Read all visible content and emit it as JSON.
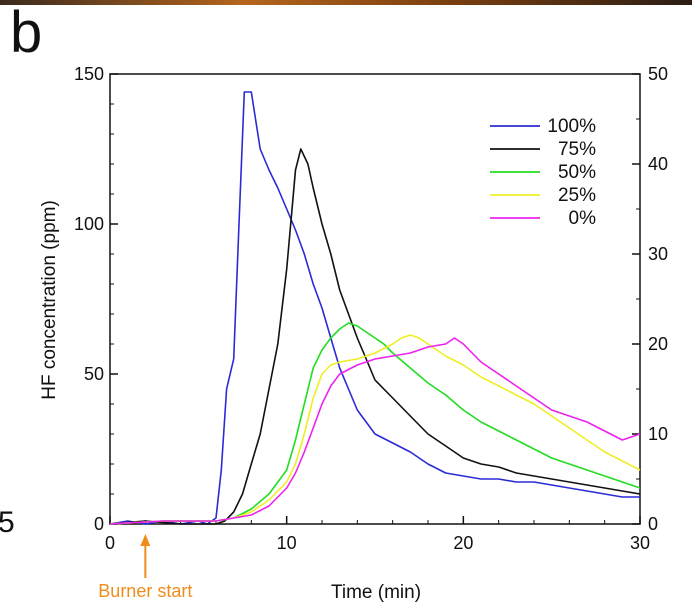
{
  "panel_label": "b",
  "edge_fragment": "5",
  "colors": {
    "s100": "#2b2bd6",
    "s75": "#111111",
    "s50": "#22dd22",
    "s25": "#eeee22",
    "s0": "#ee22ee",
    "annotation": "#f08c1a"
  },
  "chart_data": {
    "type": "line",
    "title": "",
    "xlabel": "Time (min)",
    "ylabel": "HF concentration (ppm)",
    "xlim": [
      0,
      30
    ],
    "ylim": [
      0,
      150
    ],
    "y2lim": [
      0,
      50
    ],
    "xticks": [
      "0",
      "10",
      "20",
      "30"
    ],
    "yticks": [
      "0",
      "50",
      "100",
      "150"
    ],
    "y2ticks": [
      "0",
      "10",
      "20",
      "30",
      "40",
      "50"
    ],
    "legend_position": "top-right",
    "grid": false,
    "annotation": {
      "text": "Burner start",
      "x": 2
    },
    "series": [
      {
        "name": "100%",
        "color_key": "s100",
        "points": [
          [
            0,
            0
          ],
          [
            1,
            1
          ],
          [
            2,
            0
          ],
          [
            3,
            1
          ],
          [
            4,
            0
          ],
          [
            5,
            1
          ],
          [
            5.5,
            0
          ],
          [
            6,
            2
          ],
          [
            6.3,
            18
          ],
          [
            6.6,
            45
          ],
          [
            7,
            55
          ],
          [
            7.3,
            100
          ],
          [
            7.6,
            144
          ],
          [
            8,
            144
          ],
          [
            8.5,
            125
          ],
          [
            9,
            118
          ],
          [
            9.5,
            112
          ],
          [
            10,
            105
          ],
          [
            10.5,
            98
          ],
          [
            11,
            90
          ],
          [
            11.5,
            80
          ],
          [
            12,
            72
          ],
          [
            12.5,
            62
          ],
          [
            13,
            52
          ],
          [
            13.5,
            45
          ],
          [
            14,
            38
          ],
          [
            15,
            30
          ],
          [
            16,
            27
          ],
          [
            17,
            24
          ],
          [
            18,
            20
          ],
          [
            19,
            17
          ],
          [
            20,
            16
          ],
          [
            21,
            15
          ],
          [
            22,
            15
          ],
          [
            23,
            14
          ],
          [
            24,
            14
          ],
          [
            25,
            13
          ],
          [
            26,
            12
          ],
          [
            27,
            11
          ],
          [
            28,
            10
          ],
          [
            29,
            9
          ],
          [
            30,
            9
          ]
        ]
      },
      {
        "name": "75%",
        "color_key": "s75",
        "points": [
          [
            0,
            0
          ],
          [
            2,
            1
          ],
          [
            4,
            0
          ],
          [
            6,
            0
          ],
          [
            6.5,
            1
          ],
          [
            7,
            4
          ],
          [
            7.5,
            10
          ],
          [
            8,
            20
          ],
          [
            8.5,
            30
          ],
          [
            9,
            45
          ],
          [
            9.5,
            60
          ],
          [
            10,
            85
          ],
          [
            10.5,
            118
          ],
          [
            10.8,
            125
          ],
          [
            11.2,
            120
          ],
          [
            11.5,
            112
          ],
          [
            12,
            100
          ],
          [
            12.5,
            90
          ],
          [
            13,
            78
          ],
          [
            13.5,
            70
          ],
          [
            14,
            62
          ],
          [
            14.5,
            55
          ],
          [
            15,
            48
          ],
          [
            16,
            42
          ],
          [
            17,
            36
          ],
          [
            18,
            30
          ],
          [
            19,
            26
          ],
          [
            20,
            22
          ],
          [
            21,
            20
          ],
          [
            22,
            19
          ],
          [
            23,
            17
          ],
          [
            24,
            16
          ],
          [
            25,
            15
          ],
          [
            26,
            14
          ],
          [
            27,
            13
          ],
          [
            28,
            12
          ],
          [
            29,
            11
          ],
          [
            30,
            10
          ]
        ]
      },
      {
        "name": "50%",
        "color_key": "s50",
        "points": [
          [
            0,
            0
          ],
          [
            3,
            1
          ],
          [
            6,
            1
          ],
          [
            7,
            2
          ],
          [
            8,
            5
          ],
          [
            9,
            10
          ],
          [
            10,
            18
          ],
          [
            10.5,
            28
          ],
          [
            11,
            40
          ],
          [
            11.5,
            52
          ],
          [
            12,
            58
          ],
          [
            12.5,
            62
          ],
          [
            13,
            65
          ],
          [
            13.5,
            67
          ],
          [
            14,
            66
          ],
          [
            14.5,
            64
          ],
          [
            15,
            62
          ],
          [
            15.5,
            60
          ],
          [
            16,
            57
          ],
          [
            17,
            52
          ],
          [
            18,
            47
          ],
          [
            19,
            43
          ],
          [
            20,
            38
          ],
          [
            21,
            34
          ],
          [
            22,
            31
          ],
          [
            23,
            28
          ],
          [
            24,
            25
          ],
          [
            25,
            22
          ],
          [
            26,
            20
          ],
          [
            27,
            18
          ],
          [
            28,
            16
          ],
          [
            29,
            14
          ],
          [
            30,
            12
          ]
        ]
      },
      {
        "name": "25%",
        "color_key": "s25",
        "points": [
          [
            0,
            0
          ],
          [
            3,
            1
          ],
          [
            6,
            1
          ],
          [
            7,
            2
          ],
          [
            8,
            4
          ],
          [
            9,
            8
          ],
          [
            10,
            14
          ],
          [
            10.5,
            20
          ],
          [
            11,
            30
          ],
          [
            11.5,
            42
          ],
          [
            12,
            50
          ],
          [
            12.5,
            53
          ],
          [
            13,
            54
          ],
          [
            14,
            55
          ],
          [
            15,
            57
          ],
          [
            16,
            60
          ],
          [
            16.5,
            62
          ],
          [
            17,
            63
          ],
          [
            17.5,
            62
          ],
          [
            18,
            60
          ],
          [
            19,
            56
          ],
          [
            20,
            53
          ],
          [
            21,
            49
          ],
          [
            22,
            46
          ],
          [
            23,
            43
          ],
          [
            24,
            40
          ],
          [
            25,
            36
          ],
          [
            26,
            32
          ],
          [
            27,
            28
          ],
          [
            28,
            24
          ],
          [
            29,
            21
          ],
          [
            30,
            18
          ]
        ]
      },
      {
        "name": "0%",
        "color_key": "s0",
        "points": [
          [
            0,
            0
          ],
          [
            3,
            1
          ],
          [
            6,
            1
          ],
          [
            7,
            2
          ],
          [
            8,
            3
          ],
          [
            9,
            6
          ],
          [
            10,
            12
          ],
          [
            10.5,
            17
          ],
          [
            11,
            24
          ],
          [
            11.5,
            32
          ],
          [
            12,
            40
          ],
          [
            12.5,
            46
          ],
          [
            13,
            50
          ],
          [
            14,
            53
          ],
          [
            15,
            55
          ],
          [
            16,
            56
          ],
          [
            17,
            57
          ],
          [
            18,
            59
          ],
          [
            19,
            60
          ],
          [
            19.5,
            62
          ],
          [
            20,
            60
          ],
          [
            21,
            54
          ],
          [
            22,
            50
          ],
          [
            23,
            46
          ],
          [
            24,
            42
          ],
          [
            25,
            38
          ],
          [
            26,
            36
          ],
          [
            27,
            34
          ],
          [
            28,
            31
          ],
          [
            29,
            28
          ],
          [
            30,
            30
          ]
        ]
      }
    ]
  }
}
